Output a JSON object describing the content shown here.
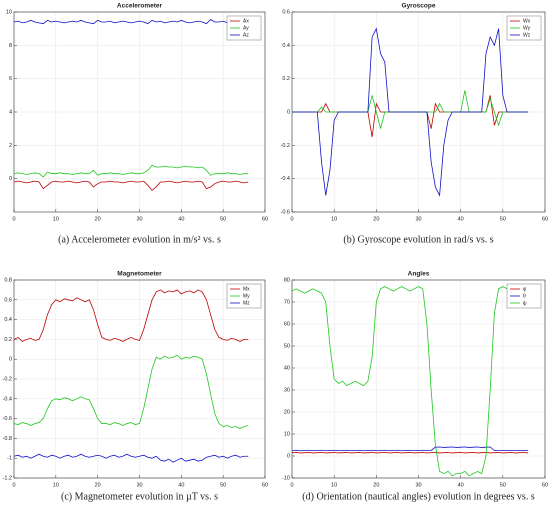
{
  "chart_data": [
    {
      "type": "line",
      "title": "Accelerometer",
      "caption": "(a) Accelerometer evolution in m/s² vs. s",
      "x": [
        0,
        1,
        2,
        3,
        4,
        5,
        6,
        7,
        8,
        9,
        10,
        11,
        12,
        13,
        14,
        15,
        16,
        17,
        18,
        19,
        20,
        21,
        22,
        23,
        24,
        25,
        26,
        27,
        28,
        29,
        30,
        31,
        32,
        33,
        34,
        35,
        36,
        37,
        38,
        39,
        40,
        41,
        42,
        43,
        44,
        45,
        46,
        47,
        48,
        49,
        50,
        51,
        52,
        53,
        54,
        55,
        56
      ],
      "xlim": [
        0,
        60
      ],
      "xticks": [
        0,
        10,
        20,
        30,
        40,
        50,
        60
      ],
      "ylim": [
        -2,
        10
      ],
      "yticks": [
        0,
        2,
        4,
        6,
        8,
        10
      ],
      "grid": true,
      "legend": "upper right",
      "series": [
        {
          "name": "Ax",
          "color": "#c00000",
          "values": [
            -0.2,
            -0.15,
            -0.2,
            -0.25,
            -0.2,
            -0.15,
            -0.2,
            -0.6,
            -0.4,
            -0.2,
            -0.15,
            -0.2,
            -0.2,
            -0.15,
            -0.2,
            -0.25,
            -0.2,
            -0.15,
            -0.2,
            -0.5,
            -0.3,
            -0.2,
            -0.2,
            -0.15,
            -0.2,
            -0.2,
            -0.25,
            -0.2,
            -0.15,
            -0.2,
            -0.2,
            -0.15,
            -0.4,
            -0.7,
            -0.5,
            -0.2,
            -0.2,
            -0.15,
            -0.2,
            -0.25,
            -0.2,
            -0.15,
            -0.2,
            -0.2,
            -0.15,
            -0.2,
            -0.6,
            -0.5,
            -0.3,
            -0.2,
            -0.15,
            -0.2,
            -0.2,
            -0.15,
            -0.2,
            -0.25,
            -0.2
          ]
        },
        {
          "name": "Ay",
          "color": "#1ec81e",
          "values": [
            0.3,
            0.35,
            0.3,
            0.25,
            0.3,
            0.35,
            0.3,
            0.1,
            0.4,
            0.3,
            0.3,
            0.35,
            0.3,
            0.3,
            0.25,
            0.3,
            0.35,
            0.3,
            0.3,
            0.5,
            0.2,
            0.3,
            0.3,
            0.35,
            0.3,
            0.3,
            0.25,
            0.3,
            0.35,
            0.3,
            0.3,
            0.35,
            0.5,
            0.8,
            0.7,
            0.7,
            0.75,
            0.7,
            0.7,
            0.65,
            0.7,
            0.75,
            0.7,
            0.7,
            0.65,
            0.7,
            0.5,
            0.2,
            0.3,
            0.3,
            0.3,
            0.35,
            0.3,
            0.3,
            0.25,
            0.3,
            0.3
          ]
        },
        {
          "name": "Az",
          "color": "#1010c8",
          "values": [
            9.4,
            9.45,
            9.35,
            9.4,
            9.5,
            9.4,
            9.35,
            9.3,
            9.5,
            9.4,
            9.45,
            9.4,
            9.35,
            9.4,
            9.45,
            9.4,
            9.5,
            9.4,
            9.35,
            9.3,
            9.5,
            9.4,
            9.4,
            9.45,
            9.35,
            9.4,
            9.45,
            9.4,
            9.35,
            9.4,
            9.45,
            9.4,
            9.3,
            9.5,
            9.4,
            9.45,
            9.35,
            9.4,
            9.45,
            9.4,
            9.5,
            9.4,
            9.35,
            9.4,
            9.45,
            9.4,
            9.3,
            9.55,
            9.4,
            9.4,
            9.45,
            9.35,
            9.4,
            9.45,
            9.4,
            9.35,
            9.4
          ]
        }
      ]
    },
    {
      "type": "line",
      "title": "Gyroscope",
      "caption": "(b) Gyroscope evolution in rad/s vs. s",
      "x": [
        0,
        1,
        2,
        3,
        4,
        5,
        6,
        7,
        8,
        9,
        10,
        11,
        12,
        13,
        14,
        15,
        16,
        17,
        18,
        19,
        20,
        21,
        22,
        23,
        24,
        25,
        26,
        27,
        28,
        29,
        30,
        31,
        32,
        33,
        34,
        35,
        36,
        37,
        38,
        39,
        40,
        41,
        42,
        43,
        44,
        45,
        46,
        47,
        48,
        49,
        50,
        51,
        52,
        53,
        54,
        55,
        56
      ],
      "xlim": [
        0,
        60
      ],
      "xticks": [
        0,
        10,
        20,
        30,
        40,
        50,
        60
      ],
      "ylim": [
        -0.6,
        0.6
      ],
      "yticks": [
        -0.6,
        -0.4,
        -0.2,
        0,
        0.2,
        0.4,
        0.6
      ],
      "grid": true,
      "legend": "upper right",
      "series": [
        {
          "name": "Wx",
          "color": "#c00000",
          "values": [
            0,
            0,
            0,
            0,
            0,
            0,
            0,
            0,
            0.05,
            0,
            0,
            0,
            0,
            0,
            0,
            0,
            0,
            0,
            0,
            -0.15,
            0.05,
            0,
            0,
            0,
            0,
            0,
            0,
            0,
            0,
            0,
            0,
            0,
            0,
            -0.1,
            0.05,
            0,
            0,
            0,
            0,
            0,
            0,
            0,
            0,
            0,
            0,
            0,
            0,
            0.1,
            -0.08,
            0,
            0,
            0,
            0,
            0,
            0,
            0,
            0
          ]
        },
        {
          "name": "Wy",
          "color": "#1ec81e",
          "values": [
            0,
            0,
            0,
            0,
            0,
            0,
            0,
            0.03,
            0,
            0,
            0,
            0,
            0,
            0,
            0,
            0,
            0,
            0,
            0,
            0.1,
            0,
            -0.1,
            0,
            0,
            0,
            0,
            0,
            0,
            0,
            0,
            0,
            0,
            0,
            0,
            0,
            0.05,
            0,
            0,
            0,
            0,
            0,
            0.13,
            0,
            0,
            0,
            0,
            0,
            0.08,
            0,
            -0.08,
            0,
            0,
            0,
            0,
            0,
            0,
            0
          ]
        },
        {
          "name": "Wz",
          "color": "#1010c8",
          "values": [
            0,
            0,
            0,
            0,
            0,
            0,
            0,
            -0.3,
            -0.5,
            -0.35,
            -0.05,
            0,
            0,
            0,
            0,
            0,
            0,
            0,
            0,
            0.45,
            0.5,
            0.35,
            0.3,
            0,
            0,
            0,
            0,
            0,
            0,
            0,
            0,
            0,
            0,
            -0.3,
            -0.45,
            -0.5,
            -0.2,
            -0.05,
            0,
            0,
            0,
            0,
            0,
            0,
            0,
            0,
            0.35,
            0.45,
            0.4,
            0.5,
            0.1,
            0,
            0,
            0,
            0,
            0,
            0
          ]
        }
      ]
    },
    {
      "type": "line",
      "title": "Magnetometer",
      "caption": "(c) Magnetometer evolution in µT vs. s",
      "x": [
        0,
        1,
        2,
        3,
        4,
        5,
        6,
        7,
        8,
        9,
        10,
        11,
        12,
        13,
        14,
        15,
        16,
        17,
        18,
        19,
        20,
        21,
        22,
        23,
        24,
        25,
        26,
        27,
        28,
        29,
        30,
        31,
        32,
        33,
        34,
        35,
        36,
        37,
        38,
        39,
        40,
        41,
        42,
        43,
        44,
        45,
        46,
        47,
        48,
        49,
        50,
        51,
        52,
        53,
        54,
        55,
        56
      ],
      "xlim": [
        0,
        60
      ],
      "xticks": [
        0,
        10,
        20,
        30,
        40,
        50,
        60
      ],
      "ylim": [
        -1.2,
        0.8
      ],
      "yticks": [
        -1.2,
        -1,
        -0.8,
        -0.6,
        -0.4,
        -0.2,
        0,
        0.2,
        0.4,
        0.6,
        0.8
      ],
      "grid": true,
      "legend": "upper right",
      "series": [
        {
          "name": "Mx",
          "color": "#c00000",
          "values": [
            0.2,
            0.22,
            0.18,
            0.2,
            0.21,
            0.19,
            0.2,
            0.3,
            0.45,
            0.55,
            0.6,
            0.58,
            0.61,
            0.6,
            0.59,
            0.62,
            0.6,
            0.58,
            0.6,
            0.5,
            0.35,
            0.22,
            0.2,
            0.19,
            0.21,
            0.2,
            0.18,
            0.2,
            0.22,
            0.2,
            0.19,
            0.3,
            0.45,
            0.6,
            0.68,
            0.7,
            0.67,
            0.69,
            0.68,
            0.7,
            0.66,
            0.68,
            0.69,
            0.67,
            0.7,
            0.68,
            0.6,
            0.45,
            0.3,
            0.22,
            0.2,
            0.19,
            0.21,
            0.2,
            0.18,
            0.2,
            0.2
          ]
        },
        {
          "name": "My",
          "color": "#1ec81e",
          "values": [
            -0.65,
            -0.66,
            -0.64,
            -0.65,
            -0.67,
            -0.65,
            -0.64,
            -0.6,
            -0.5,
            -0.42,
            -0.4,
            -0.41,
            -0.39,
            -0.4,
            -0.42,
            -0.4,
            -0.38,
            -0.4,
            -0.41,
            -0.5,
            -0.6,
            -0.65,
            -0.65,
            -0.66,
            -0.64,
            -0.65,
            -0.67,
            -0.65,
            -0.64,
            -0.66,
            -0.65,
            -0.5,
            -0.3,
            -0.1,
            0.02,
            0,
            0.03,
            0.01,
            0.02,
            0.04,
            0,
            0.02,
            0.01,
            0.03,
            0.02,
            0,
            -0.15,
            -0.35,
            -0.55,
            -0.65,
            -0.68,
            -0.67,
            -0.69,
            -0.68,
            -0.7,
            -0.68,
            -0.67
          ]
        },
        {
          "name": "Mz",
          "color": "#1010c8",
          "values": [
            -0.98,
            -0.97,
            -0.99,
            -0.98,
            -1,
            -0.98,
            -0.96,
            -0.98,
            -0.99,
            -0.97,
            -0.98,
            -1,
            -0.98,
            -0.97,
            -0.99,
            -0.98,
            -0.96,
            -0.98,
            -0.99,
            -0.98,
            -0.97,
            -0.98,
            -1,
            -0.98,
            -0.97,
            -0.99,
            -0.98,
            -0.96,
            -0.98,
            -0.99,
            -0.98,
            -0.97,
            -0.99,
            -1,
            -0.98,
            -1.02,
            -1.03,
            -1.01,
            -1.04,
            -1.02,
            -1,
            -1.03,
            -1.02,
            -1.01,
            -1.03,
            -1.02,
            -0.99,
            -0.98,
            -0.97,
            -0.99,
            -0.98,
            -1,
            -0.98,
            -0.97,
            -0.99,
            -0.98,
            -0.98
          ]
        }
      ]
    },
    {
      "type": "line",
      "title": "Angles",
      "caption": "(d) Orientation (nautical angles) evolution in degrees vs. s",
      "x": [
        0,
        1,
        2,
        3,
        4,
        5,
        6,
        7,
        8,
        9,
        10,
        11,
        12,
        13,
        14,
        15,
        16,
        17,
        18,
        19,
        20,
        21,
        22,
        23,
        24,
        25,
        26,
        27,
        28,
        29,
        30,
        31,
        32,
        33,
        34,
        35,
        36,
        37,
        38,
        39,
        40,
        41,
        42,
        43,
        44,
        45,
        46,
        47,
        48,
        49,
        50,
        51,
        52,
        53,
        54,
        55,
        56
      ],
      "xlim": [
        0,
        60
      ],
      "xticks": [
        0,
        10,
        20,
        30,
        40,
        50,
        60
      ],
      "ylim": [
        -10,
        80
      ],
      "yticks": [
        -10,
        0,
        10,
        20,
        30,
        40,
        50,
        60,
        70,
        80
      ],
      "grid": true,
      "legend": "upper right",
      "series": [
        {
          "name": "φ",
          "color": "#c00000",
          "values": [
            1.5,
            1.6,
            1.4,
            1.5,
            1.6,
            1.4,
            1.5,
            1.6,
            1.4,
            1.5,
            1.6,
            1.4,
            1.5,
            1.6,
            1.4,
            1.5,
            1.6,
            1.4,
            1.5,
            1.6,
            1.4,
            1.5,
            1.6,
            1.4,
            1.5,
            1.6,
            1.4,
            1.5,
            1.6,
            1.4,
            1.5,
            1.6,
            1.4,
            1.5,
            1.6,
            1.4,
            1.5,
            1.6,
            1.4,
            1.5,
            1.6,
            1.4,
            1.5,
            1.6,
            1.4,
            1.5,
            1.6,
            1.4,
            1.5,
            1.6,
            1.4,
            1.5,
            1.6,
            1.4,
            1.5,
            1.6,
            1.4
          ]
        },
        {
          "name": "θ",
          "color": "#1010c8",
          "values": [
            2.5,
            2.6,
            2.4,
            2.5,
            2.6,
            2.4,
            2.5,
            2.6,
            2.4,
            2.5,
            2.6,
            2.4,
            2.5,
            2.6,
            2.4,
            2.5,
            2.6,
            2.4,
            2.5,
            2.6,
            2.4,
            2.5,
            2.6,
            2.4,
            2.5,
            2.6,
            2.4,
            2.5,
            2.6,
            2.4,
            2.5,
            2.6,
            2.4,
            2.5,
            4,
            4.1,
            3.9,
            4,
            4.1,
            3.9,
            4,
            4.1,
            3.9,
            4,
            4.1,
            3.9,
            4,
            4.1,
            2.5,
            2.5,
            2.5,
            2.5,
            2.5,
            2.5,
            2.5,
            2.5,
            2.5
          ]
        },
        {
          "name": "ψ",
          "color": "#1ec81e",
          "values": [
            75,
            76,
            75,
            74,
            75,
            76,
            75,
            74,
            70,
            50,
            35,
            33,
            34,
            32,
            33,
            34,
            33,
            32,
            34,
            45,
            70,
            76,
            77,
            76,
            75,
            76,
            77,
            76,
            75,
            76,
            77,
            76,
            60,
            30,
            5,
            -7,
            -8,
            -7,
            -9,
            -8,
            -8,
            -7,
            -9,
            -8,
            -7,
            -8,
            0,
            30,
            65,
            76,
            77,
            76,
            75,
            76,
            77,
            76,
            75
          ]
        }
      ]
    }
  ]
}
